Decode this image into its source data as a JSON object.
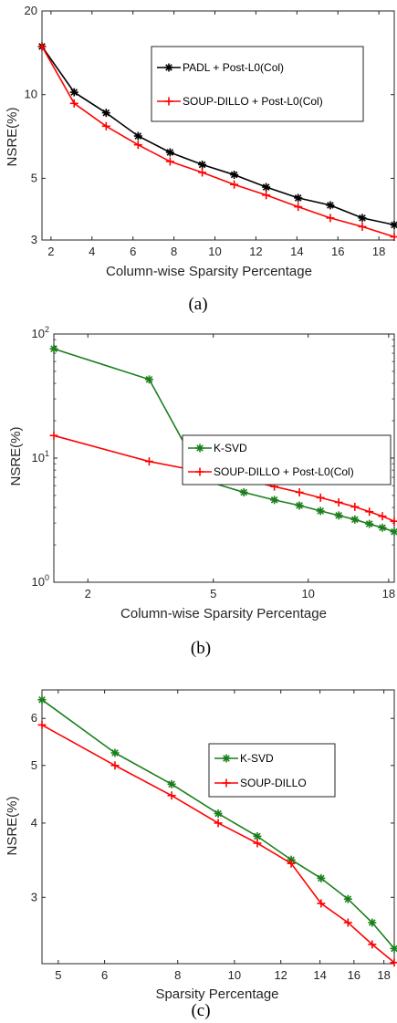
{
  "chart_data": [
    {
      "type": "line",
      "caption": "(a)",
      "xlabel": "Column-wise Sparsity Percentage",
      "ylabel": "NSRE(%)",
      "xscale": "linear",
      "yscale": "log",
      "xlim": [
        1.56,
        18.75
      ],
      "ylim": [
        3,
        20
      ],
      "xticks": [
        2,
        4,
        6,
        8,
        10,
        12,
        14,
        16,
        18
      ],
      "yticks": [
        3,
        5,
        10,
        20
      ],
      "legend_position": "top-right",
      "series": [
        {
          "name": "PADL + Post-L0(Col)",
          "color": "#000000",
          "marker": "asterisk",
          "x": [
            1.56,
            3.13,
            4.69,
            6.25,
            7.81,
            9.38,
            10.94,
            12.5,
            14.06,
            15.63,
            17.19,
            18.75
          ],
          "y": [
            14.9,
            10.2,
            8.6,
            7.1,
            6.2,
            5.6,
            5.15,
            4.65,
            4.25,
            4.0,
            3.6,
            3.4
          ]
        },
        {
          "name": "SOUP-DILLO + Post-L0(Col)",
          "color": "#ff0000",
          "marker": "plus",
          "x": [
            1.56,
            3.13,
            4.69,
            6.25,
            7.81,
            9.38,
            10.94,
            12.5,
            14.06,
            15.63,
            17.19,
            18.75
          ],
          "y": [
            14.9,
            9.3,
            7.7,
            6.6,
            5.75,
            5.25,
            4.75,
            4.35,
            3.95,
            3.6,
            3.35,
            3.08
          ]
        }
      ]
    },
    {
      "type": "line",
      "caption": "(b)",
      "xlabel": "Column-wise Sparsity Percentage",
      "ylabel": "NSRE(%)",
      "xscale": "log",
      "yscale": "log",
      "xlim": [
        1.56,
        18.75
      ],
      "ylim": [
        1,
        100
      ],
      "xticks": [
        2,
        5,
        10,
        18
      ],
      "yticks": [
        1,
        10,
        100
      ],
      "ytick_labels": [
        "10^0",
        "10^1",
        "10^2"
      ],
      "legend_position": "top-right",
      "series": [
        {
          "name": "K-SVD",
          "color": "#1a7f1a",
          "marker": "asterisk",
          "x": [
            1.56,
            3.13,
            4.69,
            6.25,
            7.81,
            9.38,
            10.94,
            12.5,
            14.06,
            15.63,
            17.19,
            18.75
          ],
          "y": [
            76,
            43,
            6.6,
            5.3,
            4.6,
            4.15,
            3.75,
            3.45,
            3.2,
            2.95,
            2.75,
            2.55
          ]
        },
        {
          "name": "SOUP-DILLO + Post-L0(Col)",
          "color": "#ff0000",
          "marker": "plus",
          "x": [
            1.56,
            3.13,
            4.69,
            6.25,
            7.81,
            9.38,
            10.94,
            12.5,
            14.06,
            15.63,
            17.19,
            18.75
          ],
          "y": [
            15.2,
            9.4,
            7.7,
            6.7,
            5.9,
            5.3,
            4.8,
            4.4,
            4.05,
            3.7,
            3.4,
            3.1
          ]
        }
      ]
    },
    {
      "type": "line",
      "caption": "(c)",
      "xlabel": "Sparsity Percentage",
      "ylabel": "NSRE(%)",
      "xscale": "log",
      "yscale": "log",
      "xlim": [
        4.69,
        18.75
      ],
      "ylim": [
        2.32,
        6.7
      ],
      "xticks": [
        5,
        6,
        8,
        10,
        12,
        14,
        16,
        18
      ],
      "yticks": [
        3,
        4,
        5,
        6
      ],
      "legend_position": "top-right",
      "series": [
        {
          "name": "K-SVD",
          "color": "#1a7f1a",
          "marker": "asterisk",
          "x": [
            4.69,
            6.25,
            7.81,
            9.38,
            10.94,
            12.5,
            14.06,
            15.63,
            17.19,
            18.75
          ],
          "y": [
            6.45,
            5.25,
            4.65,
            4.15,
            3.8,
            3.47,
            3.23,
            2.98,
            2.72,
            2.46
          ]
        },
        {
          "name": "SOUP-DILLO",
          "color": "#ff0000",
          "marker": "plus",
          "x": [
            4.69,
            6.25,
            7.81,
            9.38,
            10.94,
            12.5,
            14.06,
            15.63,
            17.19,
            18.75
          ],
          "y": [
            5.85,
            5.0,
            4.45,
            4.0,
            3.7,
            3.42,
            2.93,
            2.72,
            2.5,
            2.33
          ]
        }
      ]
    }
  ]
}
